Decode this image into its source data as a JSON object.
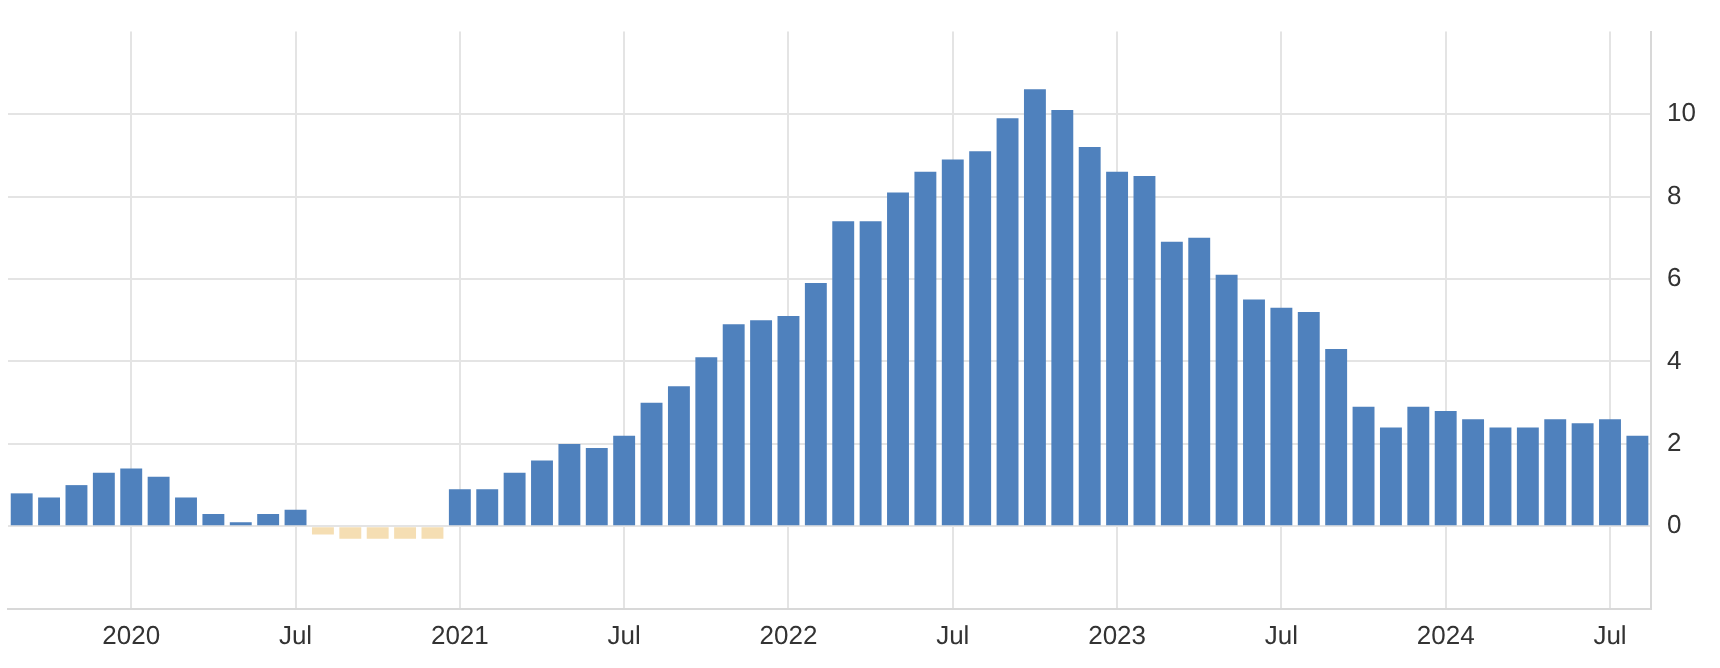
{
  "chart_data": {
    "type": "bar",
    "categories": [
      null,
      null,
      null,
      null,
      "2020",
      null,
      null,
      null,
      null,
      null,
      "Jul",
      null,
      null,
      null,
      null,
      null,
      "2021",
      null,
      null,
      null,
      null,
      null,
      "Jul",
      null,
      null,
      null,
      null,
      null,
      "2022",
      null,
      null,
      null,
      null,
      null,
      "Jul",
      null,
      null,
      null,
      null,
      null,
      "2023",
      null,
      null,
      null,
      null,
      null,
      "Jul",
      null,
      null,
      null,
      null,
      null,
      "2024",
      null,
      null,
      null,
      null,
      null,
      "Jul",
      null
    ],
    "values": [
      0.8,
      0.7,
      1.0,
      1.3,
      1.4,
      1.2,
      0.7,
      0.3,
      0.1,
      0.3,
      0.4,
      -0.2,
      -0.3,
      -0.3,
      -0.3,
      -0.3,
      0.9,
      0.9,
      1.3,
      1.6,
      2.0,
      1.9,
      2.2,
      3.0,
      3.4,
      4.1,
      4.9,
      5.0,
      5.1,
      5.9,
      7.4,
      7.4,
      8.1,
      8.6,
      8.9,
      9.1,
      9.9,
      10.6,
      10.1,
      9.2,
      8.6,
      8.5,
      6.9,
      7.0,
      6.1,
      5.5,
      5.3,
      5.2,
      4.3,
      2.9,
      2.4,
      2.9,
      2.8,
      2.6,
      2.4,
      2.4,
      2.6,
      2.5,
      2.6,
      2.2
    ],
    "colors": [
      "#4f81bd",
      "#4f81bd",
      "#4f81bd",
      "#4f81bd",
      "#4f81bd",
      "#4f81bd",
      "#4f81bd",
      "#4f81bd",
      "#4f81bd",
      "#4f81bd",
      "#4f81bd",
      "#f5deb3",
      "#f5deb3",
      "#f5deb3",
      "#f5deb3",
      "#f5deb3",
      "#4f81bd",
      "#4f81bd",
      "#4f81bd",
      "#4f81bd",
      "#4f81bd",
      "#4f81bd",
      "#4f81bd",
      "#4f81bd",
      "#4f81bd",
      "#4f81bd",
      "#4f81bd",
      "#4f81bd",
      "#4f81bd",
      "#4f81bd",
      "#4f81bd",
      "#4f81bd",
      "#4f81bd",
      "#4f81bd",
      "#4f81bd",
      "#4f81bd",
      "#4f81bd",
      "#4f81bd",
      "#4f81bd",
      "#4f81bd",
      "#4f81bd",
      "#4f81bd",
      "#4f81bd",
      "#4f81bd",
      "#4f81bd",
      "#4f81bd",
      "#4f81bd",
      "#4f81bd",
      "#4f81bd",
      "#4f81bd",
      "#4f81bd",
      "#4f81bd",
      "#4f81bd",
      "#4f81bd",
      "#4f81bd",
      "#4f81bd",
      "#4f81bd",
      "#4f81bd",
      "#4f81bd",
      "#4f81bd"
    ],
    "ylim": [
      -2,
      12
    ],
    "yticks": [
      0,
      2,
      4,
      6,
      8,
      10
    ],
    "grid": true,
    "legend": false
  }
}
